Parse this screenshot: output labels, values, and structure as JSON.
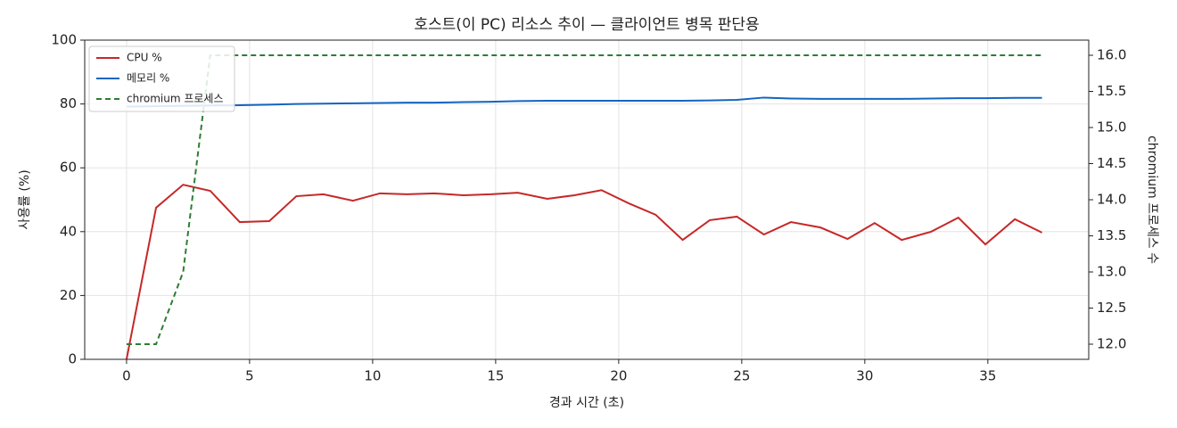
{
  "chart_data": {
    "type": "line",
    "title": "호스트(이 PC) 리소스 추이 — 클라이언트 병목 판단용",
    "xlabel": "경과 시간 (초)",
    "ylabel": "사용률 (%)",
    "y2label": "chromium 프로세스 수",
    "x": [
      0,
      1.2,
      2.3,
      3.4,
      4.6,
      5.8,
      6.9,
      8.0,
      9.2,
      10.3,
      11.4,
      12.5,
      13.7,
      14.8,
      15.9,
      17.1,
      18.2,
      19.3,
      20.4,
      21.5,
      22.6,
      23.7,
      24.8,
      25.9,
      27.0,
      28.2,
      29.3,
      30.4,
      31.5,
      32.7,
      33.8,
      34.9,
      36.1,
      37.2
    ],
    "series": [
      {
        "name": "CPU %",
        "color": "#c62828",
        "dash": false,
        "values": [
          0,
          47.5,
          54.7,
          52.8,
          43,
          43.3,
          51.1,
          51.7,
          49.7,
          52,
          51.7,
          52,
          51.4,
          51.7,
          52.2,
          50.3,
          51.4,
          53,
          48.9,
          45.3,
          37.4,
          43.6,
          44.7,
          39.1,
          43,
          41.3,
          37.7,
          42.7,
          37.4,
          40,
          44.4,
          36,
          43.9,
          39.7
        ]
      },
      {
        "name": "메모리 %",
        "color": "#1565c0",
        "dash": false,
        "values": [
          79.2,
          79.3,
          79.4,
          79.5,
          79.6,
          79.8,
          80.0,
          80.1,
          80.2,
          80.3,
          80.4,
          80.4,
          80.6,
          80.7,
          80.9,
          81.0,
          81.0,
          81.0,
          81.0,
          81.0,
          81.0,
          81.1,
          81.3,
          82.0,
          81.7,
          81.6,
          81.6,
          81.6,
          81.6,
          81.7,
          81.8,
          81.8,
          81.9,
          81.9
        ]
      },
      {
        "name": "chromium 프로세스",
        "color": "#2e7d32",
        "dash": true,
        "axis": "y2",
        "values": [
          12,
          12,
          13,
          16,
          16,
          16,
          16,
          16,
          16,
          16,
          16,
          16,
          16,
          16,
          16,
          16,
          16,
          16,
          16,
          16,
          16,
          16,
          16,
          16,
          16,
          16,
          16,
          16,
          16,
          16,
          16,
          16,
          16,
          16
        ]
      }
    ],
    "xlim": [
      -1.7,
      39.1
    ],
    "xticks": [
      0,
      5,
      10,
      15,
      20,
      25,
      30,
      35
    ],
    "ylim": [
      0,
      100
    ],
    "yticks": [
      0,
      20,
      40,
      60,
      80,
      100
    ],
    "y2lim": [
      11.79,
      16.21
    ],
    "y2ticks": [
      {
        "value": 12,
        "label": "12.0"
      },
      {
        "value": 12.5,
        "label": "12.5"
      },
      {
        "value": 13,
        "label": "13.0"
      },
      {
        "value": 13.5,
        "label": "13.5"
      },
      {
        "value": 14,
        "label": "14.0"
      },
      {
        "value": 14.5,
        "label": "14.5"
      },
      {
        "value": 15,
        "label": "15.0"
      },
      {
        "value": 15.5,
        "label": "15.5"
      },
      {
        "value": 16,
        "label": "16.0"
      }
    ],
    "grid": true,
    "legend": "upper-left"
  }
}
